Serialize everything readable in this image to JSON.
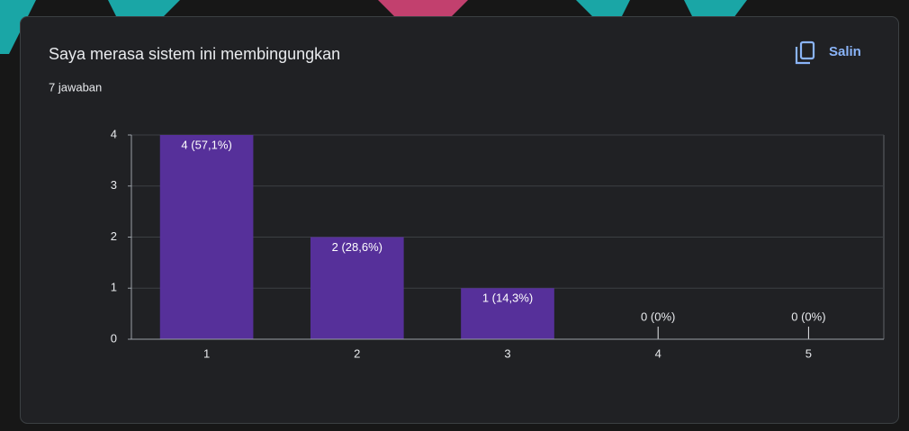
{
  "title": "Saya merasa sistem ini membingungkan",
  "subtitle": "7 jawaban",
  "copy_button": "Salin",
  "chart_data": {
    "type": "bar",
    "categories": [
      "1",
      "2",
      "3",
      "4",
      "5"
    ],
    "values": [
      4,
      2,
      1,
      0,
      0
    ],
    "value_labels": [
      "4 (57,1%)",
      "2 (28,6%)",
      "1 (14,3%)",
      "0 (0%)",
      "0 (0%)"
    ],
    "color": "#56309a",
    "ylim": [
      0,
      4
    ],
    "yticks": [
      0,
      1,
      2,
      3,
      4
    ],
    "grid": true
  }
}
